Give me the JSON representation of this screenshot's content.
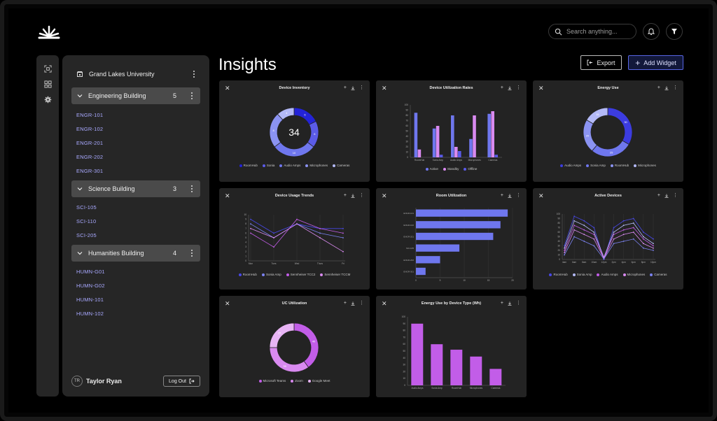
{
  "search": {
    "placeholder": "Search anything..."
  },
  "page": {
    "title": "Insights",
    "export_label": "Export",
    "add_widget_label": "Add Widget"
  },
  "sidebar": {
    "org": "Grand Lakes University",
    "groups": [
      {
        "name": "Engineering Building",
        "count": "5",
        "rooms": [
          "ENGR-101",
          "ENGR-102",
          "ENGR-201",
          "ENGR-202",
          "ENGR-301"
        ]
      },
      {
        "name": "Science Building",
        "count": "3",
        "rooms": [
          "SCI-105",
          "SCI-110",
          "SCI-205"
        ]
      },
      {
        "name": "Humanities Building",
        "count": "4",
        "rooms": [
          "HUMN-G01",
          "HUMN-G02",
          "HUMN-101",
          "HUMN-102"
        ]
      }
    ],
    "user": {
      "initials": "TR",
      "name": "Taylor Ryan"
    },
    "logout_label": "Log Out"
  },
  "colors": {
    "blue": "#2f2fe0",
    "indigo": "#5a5ae8",
    "periwinkle": "#7b82f0",
    "lavender": "#a9b0f5",
    "violet": "#c25de8",
    "pink": "#d98af0"
  },
  "widgets": [
    {
      "title": "Device Inventory",
      "chart_data": {
        "type": "pie",
        "center_label": "34",
        "slices": [
          {
            "name": "RoomHub",
            "value": 6,
            "label": "6",
            "color": "#2323d8"
          },
          {
            "name": "Sonia",
            "value": 6,
            "label": "6",
            "color": "#5b5be8"
          },
          {
            "name": "Audio Amps",
            "value": 10,
            "label": "10",
            "color": "#6f77ee"
          },
          {
            "name": "Microphones",
            "value": 8,
            "label": "8",
            "color": "#8b93f2"
          },
          {
            "name": "Cameras",
            "value": 4,
            "label": "4",
            "color": "#b3b9f7"
          }
        ],
        "legend": [
          "RoomHub",
          "Sonia",
          "Audio Amps",
          "Microphones",
          "Cameras"
        ]
      }
    },
    {
      "title": "Device Utilization Rates",
      "chart_data": {
        "type": "bar",
        "categories": [
          "RoomHub",
          "Sonia Amp",
          "Audio Amps",
          "Microphones",
          "Cameras"
        ],
        "series": [
          {
            "name": "Active",
            "values": [
              85,
              55,
              80,
              35,
              83
            ],
            "color": "#6f77ee"
          },
          {
            "name": "Standby",
            "values": [
              15,
              60,
              20,
              80,
              88
            ],
            "color": "#d98af0"
          },
          {
            "name": "Offline",
            "values": [
              0,
              5,
              12,
              0,
              5
            ],
            "color": "#5a5ae8"
          }
        ],
        "ylim": [
          0,
          100
        ],
        "yticks": [
          "0",
          "10",
          "20",
          "30",
          "40",
          "50",
          "60",
          "70",
          "80",
          "90",
          "100"
        ],
        "legend": [
          "Active",
          "Standby",
          "Offline"
        ]
      }
    },
    {
      "title": "Energy Use",
      "chart_data": {
        "type": "pie",
        "slices": [
          {
            "name": "Audio Amps",
            "value": 30,
            "label": "30",
            "color": "#3c3ce0"
          },
          {
            "name": "Sonia Amp",
            "value": 25,
            "label": "25",
            "color": "#6f77ee"
          },
          {
            "name": "RoomHub",
            "value": 20,
            "label": "20",
            "color": "#8b93f2"
          },
          {
            "name": "Microphones",
            "value": 15,
            "label": "15",
            "color": "#b3b9f7"
          }
        ],
        "legend": [
          "Audio Amps",
          "Sonia Amp",
          "RoomHub",
          "Microphones"
        ]
      }
    },
    {
      "title": "Device Usage Trends",
      "chart_data": {
        "type": "line",
        "categories": [
          "Mon",
          "Tues",
          "Wed",
          "Thurs",
          "Fri"
        ],
        "ylim": [
          0,
          10
        ],
        "yticks": [
          "0",
          "1",
          "2",
          "3",
          "4",
          "5",
          "6",
          "7",
          "8",
          "9",
          "10"
        ],
        "series": [
          {
            "name": "RoomHub",
            "values": [
              9,
              6,
              8,
              7,
              7
            ],
            "color": "#4848e6"
          },
          {
            "name": "Sonia Amp",
            "values": [
              8,
              5,
              8,
              6,
              5
            ],
            "color": "#7b82f0"
          },
          {
            "name": "Sennheiser TCC2",
            "values": [
              6,
              3,
              9,
              7,
              6
            ],
            "color": "#c25de8"
          },
          {
            "name": "Sennheiser TCCM",
            "values": [
              7,
              5,
              8,
              5,
              2
            ],
            "color": "#d98af0"
          }
        ],
        "legend": [
          "RoomHub",
          "Sonia Amp",
          "Sennheiser TCC2",
          "Sennheiser TCCM"
        ]
      }
    },
    {
      "title": "Room Utilization",
      "chart_data": {
        "type": "bar",
        "orientation": "horizontal",
        "categories": [
          "ENGR-101",
          "ENGR-102",
          "ENGR-201",
          "ENGR-202",
          "ENGR-301",
          "SCI-105"
        ],
        "values": [
          19,
          17.5,
          16,
          9,
          5,
          2
        ],
        "ylabels": [
          "ENGR-101",
          "ENGR-102",
          "ENGR-201",
          "SCI-105",
          "ENGR-202",
          "ENGR-301"
        ],
        "xlim": [
          0,
          20
        ],
        "xticks": [
          "0",
          "5",
          "10",
          "15",
          "20"
        ],
        "color": "#6f77ee"
      }
    },
    {
      "title": "Active Devices",
      "chart_data": {
        "type": "line",
        "categories": [
          "4am",
          "6am",
          "8am",
          "10am",
          "12pm",
          "2pm",
          "4pm",
          "6pm",
          "8pm",
          "10pm"
        ],
        "ylim": [
          0,
          100
        ],
        "yticks": [
          "0",
          "10",
          "20",
          "30",
          "40",
          "50",
          "60",
          "70",
          "80",
          "90",
          "100"
        ],
        "series": [
          {
            "name": "RoomHub",
            "values": [
              30,
              95,
              85,
              70,
              0,
              70,
              85,
              90,
              60,
              45
            ],
            "color": "#4848e6"
          },
          {
            "name": "Sonia Amp",
            "values": [
              25,
              85,
              75,
              60,
              5,
              60,
              75,
              80,
              50,
              35
            ],
            "color": "#b3b9f7"
          },
          {
            "name": "Audio Amps",
            "values": [
              20,
              75,
              65,
              55,
              3,
              55,
              65,
              70,
              45,
              30
            ],
            "color": "#c25de8"
          },
          {
            "name": "Microphones",
            "values": [
              15,
              65,
              55,
              45,
              2,
              45,
              55,
              60,
              35,
              25
            ],
            "color": "#d98af0"
          },
          {
            "name": "Cameras",
            "values": [
              10,
              50,
              40,
              30,
              1,
              35,
              40,
              45,
              25,
              20
            ],
            "color": "#7b82f0"
          }
        ],
        "legend": [
          "RoomHub",
          "Sonia Amp",
          "Audio Amps",
          "Microphones",
          "Cameras"
        ]
      }
    },
    {
      "title": "UC Utilization",
      "chart_data": {
        "type": "pie",
        "slices": [
          {
            "name": "Microsoft Teams",
            "value": 40,
            "label": "40",
            "color": "#c25de8"
          },
          {
            "name": "Zoom",
            "value": 35,
            "label": "35",
            "color": "#d98af0"
          },
          {
            "name": "Google Meet",
            "value": 25,
            "label": "25",
            "color": "#e8b4f5"
          }
        ],
        "legend": [
          "Microsoft Teams",
          "Zoom",
          "Google Meet"
        ]
      }
    },
    {
      "title": "Energy Use by Device Type (Wh)",
      "chart_data": {
        "type": "bar",
        "categories": [
          "Audio Amps",
          "Sonia Amp",
          "RoomHub",
          "Microphones",
          "Cameras"
        ],
        "values": [
          90,
          60,
          52,
          42,
          24
        ],
        "ylim": [
          0,
          100
        ],
        "yticks": [
          "0",
          "10",
          "20",
          "30",
          "40",
          "50",
          "60",
          "70",
          "80",
          "90",
          "100"
        ],
        "color": "#c25de8"
      }
    }
  ]
}
